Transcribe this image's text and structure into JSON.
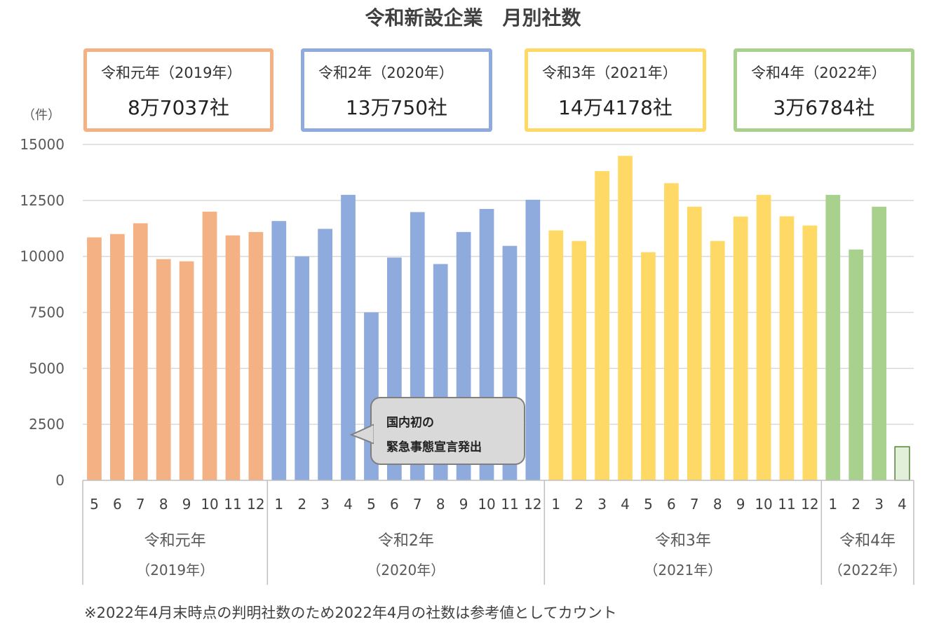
{
  "title": "令和新設企業　月別社数",
  "unit": "（件）",
  "summaries": [
    {
      "label": "令和元年（2019年）",
      "count": "8万7037社",
      "color": "#F4B183"
    },
    {
      "label": "令和2年（2020年）",
      "count": "13万750社",
      "color": "#8FAADC"
    },
    {
      "label": "令和3年（2021年）",
      "count": "14万4178社",
      "color": "#FFD966"
    },
    {
      "label": "令和4年（2022年）",
      "count": "3万6784社",
      "color": "#A9D18E"
    }
  ],
  "callout": {
    "line1": "国内初の",
    "line2": "緊急事態宣言発出"
  },
  "footnote": "※2022年4月末時点の判明社数のため2022年4月の社数は参考値としてカウント",
  "chart_data": {
    "type": "bar",
    "ylim": [
      0,
      15000
    ],
    "yticks": [
      "0",
      "2500",
      "5000",
      "7500",
      "10000",
      "12500",
      "15000"
    ],
    "grid": true,
    "groups": [
      {
        "name": "令和元年",
        "sub": "（2019年）",
        "color": "#F4B183",
        "months": [
          "5",
          "6",
          "7",
          "8",
          "9",
          "10",
          "11",
          "12"
        ],
        "values": [
          10850,
          11000,
          11480,
          9880,
          9780,
          12000,
          10940,
          11090
        ]
      },
      {
        "name": "令和2年",
        "sub": "（2020年）",
        "color": "#8FAADC",
        "months": [
          "1",
          "2",
          "3",
          "4",
          "5",
          "6",
          "7",
          "8",
          "9",
          "10",
          "11",
          "12"
        ],
        "values": [
          11580,
          10000,
          11230,
          12750,
          7500,
          9950,
          11980,
          9660,
          11090,
          12120,
          10470,
          12530
        ]
      },
      {
        "name": "令和3年",
        "sub": "（2021年）",
        "color": "#FFD966",
        "months": [
          "1",
          "2",
          "3",
          "4",
          "5",
          "6",
          "7",
          "8",
          "9",
          "10",
          "11",
          "12"
        ],
        "values": [
          11160,
          10690,
          13810,
          14490,
          10190,
          13270,
          12220,
          10690,
          11780,
          12750,
          11790,
          11380
        ]
      },
      {
        "name": "令和4年",
        "sub": "（2022年）",
        "color": "#A9D18E",
        "months": [
          "1",
          "2",
          "3",
          "4"
        ],
        "values": [
          12750,
          10310,
          12220,
          1500
        ],
        "reference_index": 3
      }
    ]
  }
}
